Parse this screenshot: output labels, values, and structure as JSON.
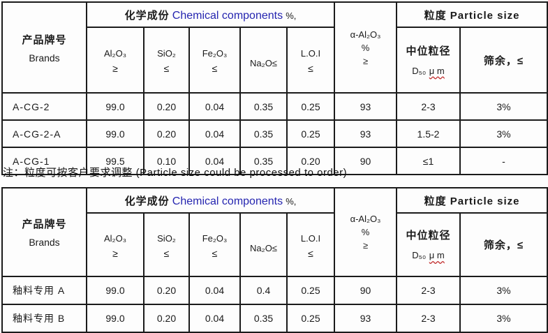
{
  "colors": {
    "link_blue": "#2525b0",
    "wavy_red": "#c23030",
    "border": "#1b1b1b"
  },
  "note": "注：粒度可按客户要求调整 (Particle size could be processed to order)",
  "tables": [
    {
      "brands": {
        "zh": "产品牌号",
        "en": "Brands"
      },
      "chem": {
        "zh": "化学成份",
        "en": "Chemical components",
        "unit": "%,"
      },
      "alpha": {
        "formula": "α-Al₂O₃",
        "unit": "%",
        "cmp": "≥"
      },
      "particle": {
        "zh": "粒度",
        "en": "Particle size"
      },
      "d50": {
        "zh": "中位粒径",
        "symbol": "D₅₀",
        "unit": "μ m"
      },
      "sieve": {
        "label": "筛余，≤"
      },
      "chem_cols": [
        {
          "line1": "Al₂O₃",
          "line2": "≥"
        },
        {
          "line1": "SiO₂",
          "line2": "≤"
        },
        {
          "line1": "Fe₂O₃",
          "line2": "≤"
        },
        {
          "line1": "Na₂O≤",
          "line2": ""
        },
        {
          "line1": "L.O.I",
          "line2": "≤"
        }
      ],
      "rows": [
        {
          "brand": "A-CG-2",
          "cells": [
            "99.0",
            "0.20",
            "0.04",
            "0.35",
            "0.25",
            "93",
            "2-3",
            "3%"
          ]
        },
        {
          "brand": "A-CG-2-A",
          "cells": [
            "99.0",
            "0.20",
            "0.04",
            "0.35",
            "0.25",
            "93",
            "1.5-2",
            "3%"
          ]
        },
        {
          "brand": "A-CG-1",
          "cells": [
            "99.5",
            "0.10",
            "0.04",
            "0.35",
            "0.20",
            "90",
            "≤1",
            "-"
          ]
        }
      ]
    },
    {
      "brands": {
        "zh": "产品牌号",
        "en": "Brands"
      },
      "chem": {
        "zh": "化学成份",
        "en": "Chemical components",
        "unit": "%,"
      },
      "alpha": {
        "formula": "α-Al₂O₃",
        "unit": "%",
        "cmp": "≥"
      },
      "particle": {
        "zh": "粒度",
        "en": "Particle size"
      },
      "d50": {
        "zh": "中位粒径",
        "symbol": "D₅₀",
        "unit": "μ m"
      },
      "sieve": {
        "label": "筛余，≤"
      },
      "chem_cols": [
        {
          "line1": "Al₂O₃",
          "line2": "≥"
        },
        {
          "line1": "SiO₂",
          "line2": "≤"
        },
        {
          "line1": "Fe₂O₃",
          "line2": "≤"
        },
        {
          "line1": "Na₂O≤",
          "line2": ""
        },
        {
          "line1": "L.O.I",
          "line2": "≤"
        }
      ],
      "rows": [
        {
          "brand": "釉料专用 A",
          "cells": [
            "99.0",
            "0.20",
            "0.04",
            "0.4",
            "0.25",
            "90",
            "2-3",
            "3%"
          ]
        },
        {
          "brand": "釉料专用 B",
          "cells": [
            "99.0",
            "0.20",
            "0.04",
            "0.35",
            "0.25",
            "93",
            "2-3",
            "3%"
          ]
        }
      ]
    }
  ]
}
